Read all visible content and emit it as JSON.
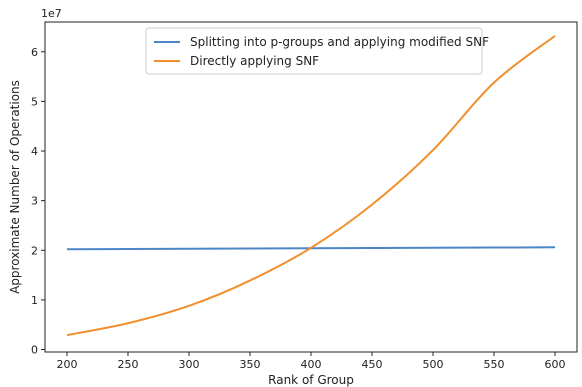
{
  "chart_data": {
    "type": "line",
    "xlabel": "Rank of Group",
    "ylabel": "Approximate Number of Operations",
    "y_offset_label": "1e7",
    "xlim": [
      182,
      618
    ],
    "ylim": [
      -0.05,
      6.6
    ],
    "xticks": [
      200,
      250,
      300,
      350,
      400,
      450,
      500,
      550,
      600
    ],
    "yticks": [
      0,
      1,
      2,
      3,
      4,
      5,
      6
    ],
    "legend_position": "top-center",
    "grid": false,
    "series": [
      {
        "name": "Splitting into p-groups and applying modified SNF",
        "color": "#4c86c6",
        "x": [
          200,
          250,
          300,
          350,
          400,
          450,
          500,
          550,
          600
        ],
        "y": [
          2.02,
          2.025,
          2.03,
          2.035,
          2.04,
          2.045,
          2.05,
          2.055,
          2.06
        ]
      },
      {
        "name": "Directly applying SNF",
        "color": "#f28e2b",
        "x": [
          200,
          250,
          300,
          350,
          400,
          450,
          500,
          550,
          600
        ],
        "y": [
          0.29,
          0.53,
          0.88,
          1.39,
          2.05,
          2.92,
          4.02,
          5.38,
          6.32
        ]
      }
    ]
  }
}
